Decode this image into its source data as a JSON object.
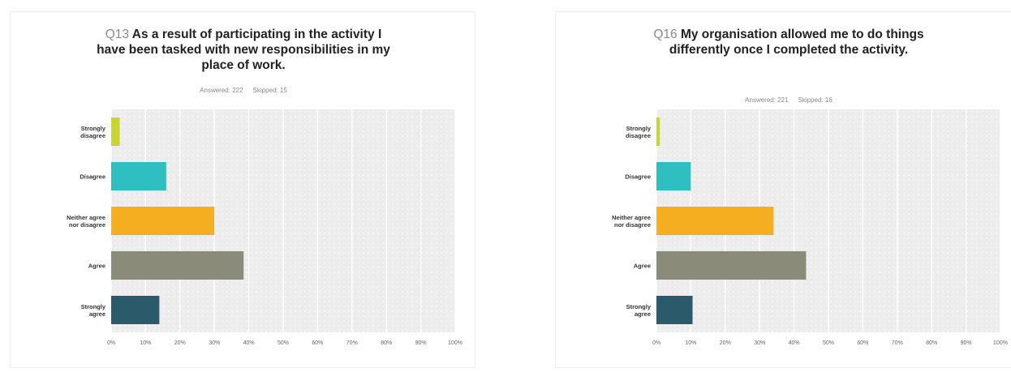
{
  "chart_data": [
    {
      "type": "bar",
      "orientation": "horizontal",
      "question_number": "Q13",
      "title": "As a result of participating in the activity I have been tasked with new responsibilities in my place of work.",
      "answered": "Answered: 222",
      "skipped": "Skipped: 15",
      "categories": [
        "Strongly disagree",
        "Disagree",
        "Neither agree nor disagree",
        "Agree",
        "Strongly agree"
      ],
      "values": [
        2.5,
        16,
        30,
        38.5,
        14
      ],
      "xlim": [
        0,
        100
      ],
      "x_ticks": [
        "0%",
        "10%",
        "20%",
        "30%",
        "40%",
        "50%",
        "60%",
        "70%",
        "80%",
        "90%",
        "100%"
      ],
      "colors": [
        "#c8d52e",
        "#2fbfc1",
        "#f4ae20",
        "#8b8b7a",
        "#2b5a6b"
      ],
      "background": "#ececec"
    },
    {
      "type": "bar",
      "orientation": "horizontal",
      "question_number": "Q16",
      "title": "My organisation allowed me to do things differently once I completed the activity.",
      "answered": "Answered: 221",
      "skipped": "Skipped: 16",
      "categories": [
        "Strongly disagree",
        "Disagree",
        "Neither agree nor disagree",
        "Agree",
        "Strongly agree"
      ],
      "values": [
        1,
        10,
        34,
        43.5,
        10.5
      ],
      "xlim": [
        0,
        100
      ],
      "x_ticks": [
        "0%",
        "10%",
        "20%",
        "30%",
        "40%",
        "50%",
        "60%",
        "70%",
        "80%",
        "90%",
        "100%"
      ],
      "colors": [
        "#c8d52e",
        "#2fbfc1",
        "#f4ae20",
        "#8b8b7a",
        "#2b5a6b"
      ],
      "background": "#ececec"
    }
  ]
}
